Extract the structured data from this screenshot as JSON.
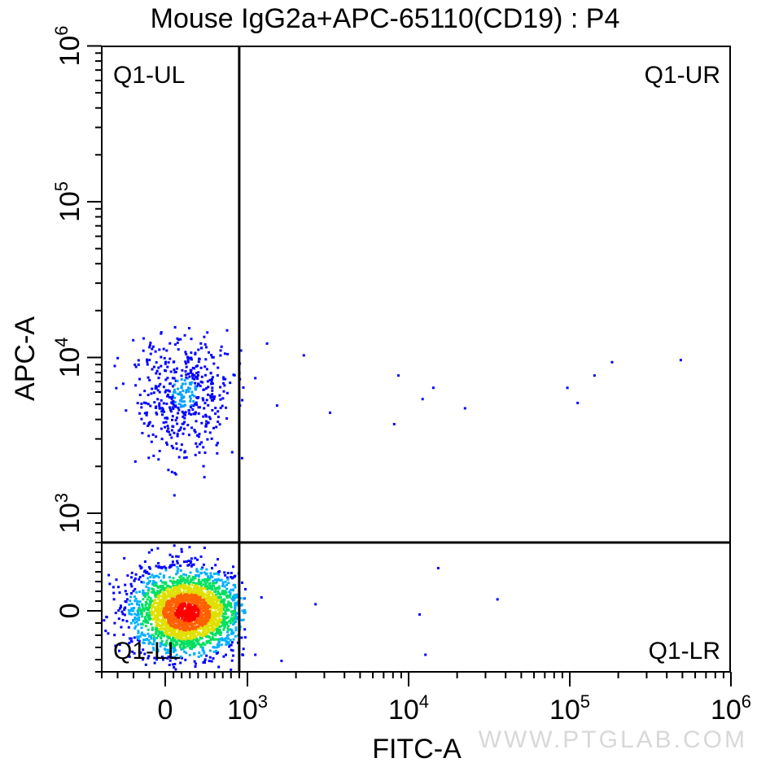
{
  "chart_data": {
    "type": "scatter",
    "title": "Mouse IgG2a+APC-65110(CD19) : P4",
    "xlabel": "FITC-A",
    "ylabel": "APC-A",
    "x_scale": "biexponential",
    "y_scale": "biexponential",
    "xlim": [
      -400,
      1000000
    ],
    "ylim": [
      -500,
      1000000
    ],
    "x_ticks": [
      {
        "value": 0,
        "label": "0"
      },
      {
        "value": 1000,
        "label": "10",
        "exp": "3"
      },
      {
        "value": 10000,
        "label": "10",
        "exp": "4"
      },
      {
        "value": 100000,
        "label": "10",
        "exp": "5"
      },
      {
        "value": 1000000,
        "label": "10",
        "exp": "6"
      }
    ],
    "y_ticks": [
      {
        "value": 0,
        "label": "0"
      },
      {
        "value": 1000,
        "label": "10",
        "exp": "3"
      },
      {
        "value": 10000,
        "label": "10",
        "exp": "4"
      },
      {
        "value": 100000,
        "label": "10",
        "exp": "5"
      },
      {
        "value": 1000000,
        "label": "10",
        "exp": "6"
      }
    ],
    "gates": {
      "x": 900,
      "y": 700
    },
    "quadrants": [
      {
        "label": "Q1-UL",
        "position": "top-left"
      },
      {
        "label": "Q1-UR",
        "position": "top-right"
      },
      {
        "label": "Q1-LL",
        "position": "bottom-left"
      },
      {
        "label": "Q1-LR",
        "position": "bottom-right"
      }
    ],
    "populations": [
      {
        "name": "",
        "description": "dense negative population",
        "center": [
          250,
          0
        ],
        "n": 2600
      },
      {
        "name": "",
        "description": "APC positive population",
        "center": [
          220,
          6000
        ],
        "n": 500
      }
    ],
    "sparse_points": [
      [
        1100,
        7500
      ],
      [
        1300,
        12500
      ],
      [
        2200,
        10500
      ],
      [
        3200,
        4500
      ],
      [
        8500,
        7800
      ],
      [
        12000,
        5500
      ],
      [
        14000,
        6500
      ],
      [
        22000,
        4800
      ],
      [
        95000,
        6500
      ],
      [
        110000,
        5200
      ],
      [
        140000,
        7800
      ],
      [
        180000,
        9500
      ],
      [
        480000,
        9800
      ],
      [
        1500,
        5000
      ],
      [
        8000,
        3800
      ],
      [
        1200,
        150
      ],
      [
        2600,
        80
      ],
      [
        11500,
        -20
      ],
      [
        15000,
        450
      ],
      [
        35000,
        130
      ],
      [
        12500,
        -350
      ],
      [
        1600,
        -400
      ],
      [
        1100,
        -350
      ]
    ],
    "colormap": [
      "#0000ff",
      "#00b0ff",
      "#00e060",
      "#e0e000",
      "#ff6000",
      "#ff0000"
    ],
    "grid": false,
    "legend": "none"
  },
  "watermark": "WWW.PTGLAB.COM"
}
